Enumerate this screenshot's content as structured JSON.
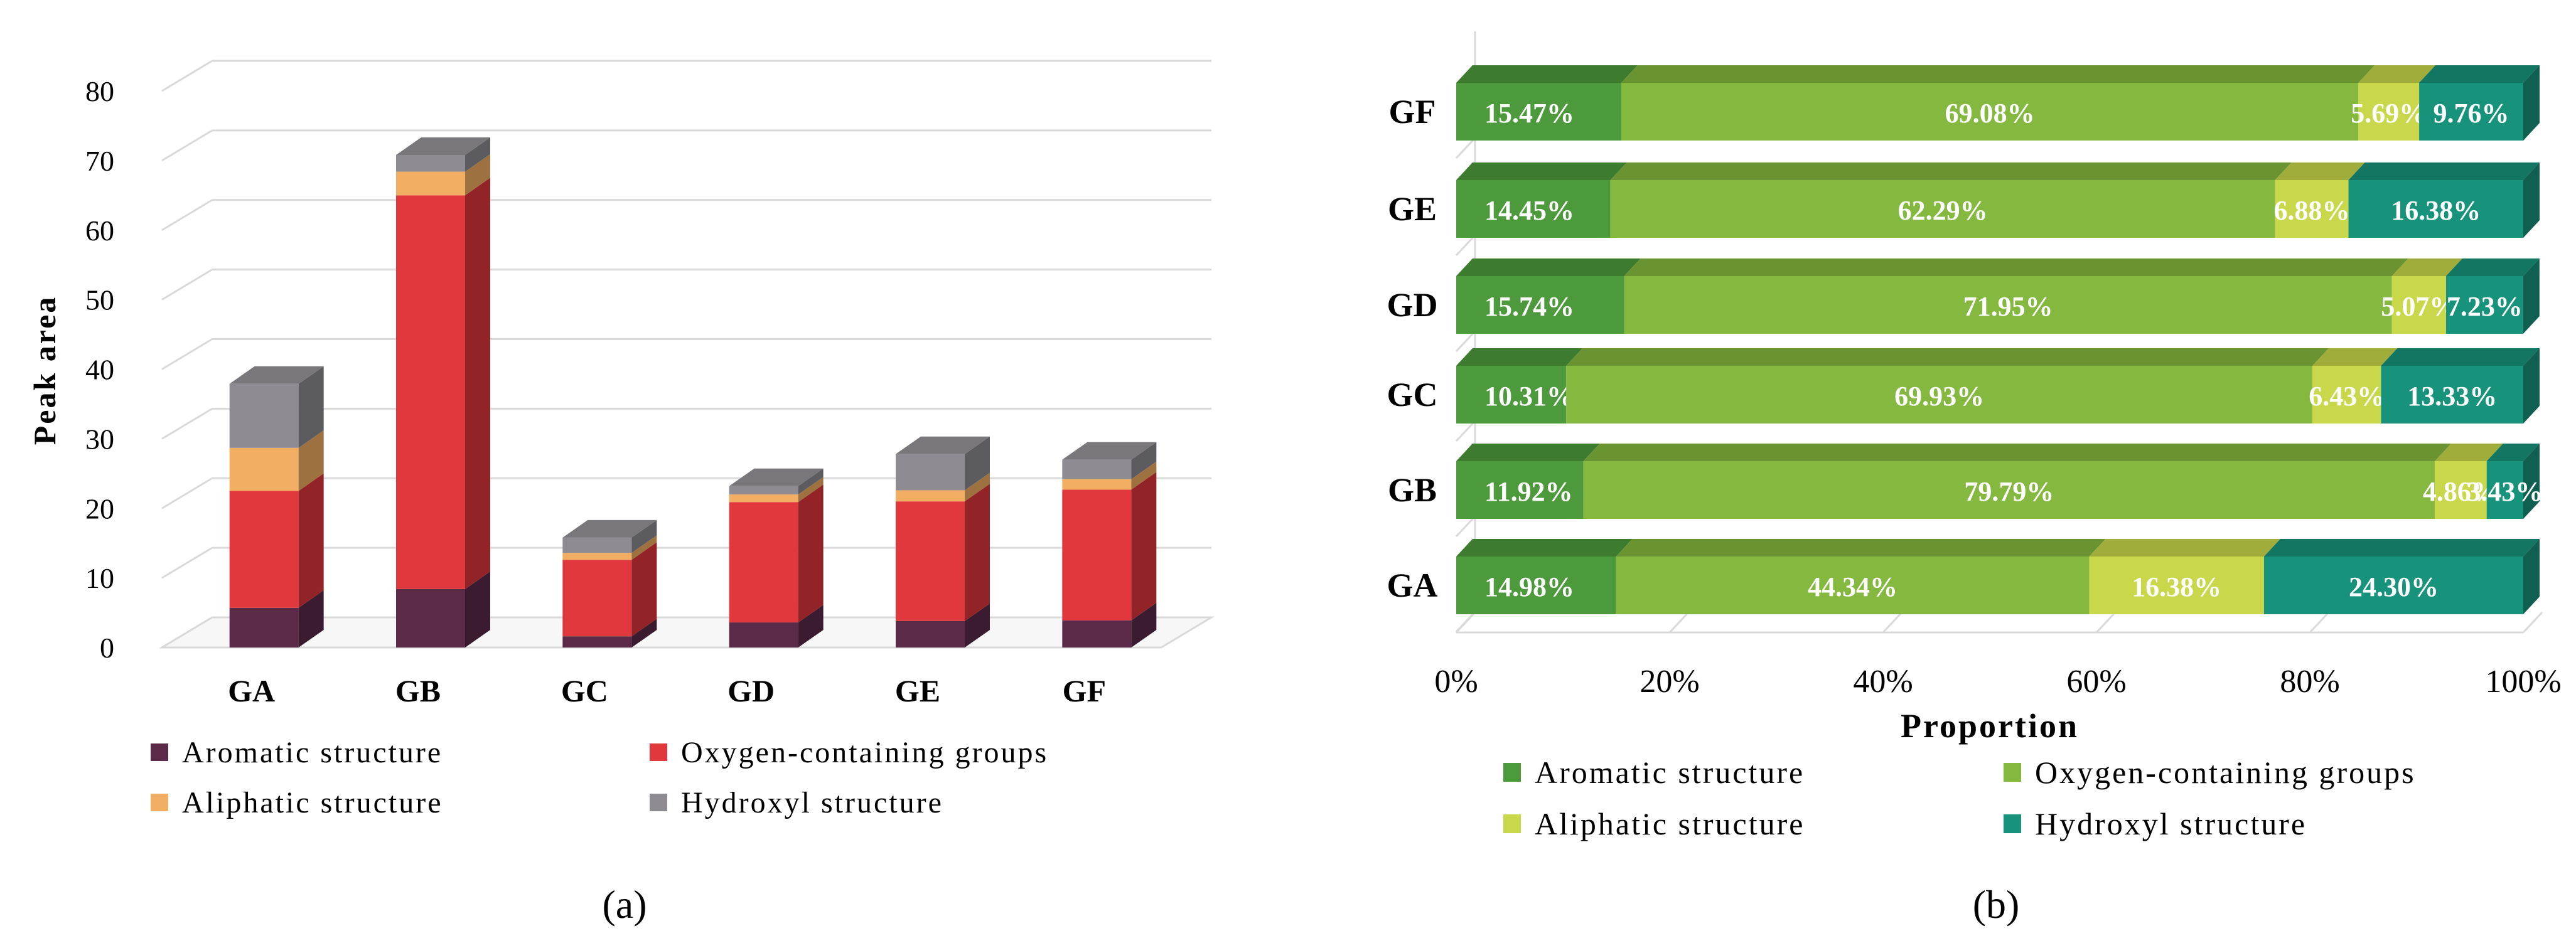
{
  "chart_data": [
    {
      "type": "bar",
      "stacked": true,
      "panel_label": "(a)",
      "title": "",
      "xlabel": "",
      "ylabel": "Peak area",
      "ylim": [
        0,
        80
      ],
      "yticks": [
        "0",
        "10",
        "20",
        "30",
        "40",
        "50",
        "60",
        "70",
        "80"
      ],
      "categories": [
        "GA",
        "GB",
        "GC",
        "GD",
        "GE",
        "GF"
      ],
      "series": [
        {
          "name": "Aromatic structure",
          "color": "#5a2a48",
          "values": [
            5.7,
            8.4,
            1.6,
            3.6,
            3.8,
            3.9
          ]
        },
        {
          "name": "Oxygen-containing groups",
          "color": "#e0383c",
          "values": [
            16.8,
            56.6,
            11.0,
            17.3,
            17.2,
            18.8
          ]
        },
        {
          "name": "Aliphatic structure",
          "color": "#f2ae62",
          "values": [
            6.2,
            3.4,
            1.0,
            1.1,
            1.6,
            1.5
          ]
        },
        {
          "name": "Hydroxyl structure",
          "color": "#8e8c92",
          "values": [
            9.2,
            2.4,
            2.2,
            1.2,
            5.2,
            2.8
          ]
        }
      ]
    },
    {
      "type": "bar",
      "stacked": true,
      "orientation": "horizontal",
      "panel_label": "(b)",
      "title": "",
      "xlabel": "Proportion",
      "ylabel": "",
      "xlim": [
        0,
        100
      ],
      "xticks": [
        "0%",
        "20%",
        "40%",
        "60%",
        "80%",
        "100%"
      ],
      "categories": [
        "GA",
        "GB",
        "GC",
        "GD",
        "GE",
        "GF"
      ],
      "series": [
        {
          "name": "Aromatic structure",
          "color": "#4c9a3b",
          "values": [
            14.98,
            11.92,
            10.31,
            15.74,
            14.45,
            15.47
          ],
          "labels": [
            "14.98%",
            "11.92%",
            "10.31%",
            "15.74%",
            "14.45%",
            "15.47%"
          ]
        },
        {
          "name": "Oxygen-containing groups",
          "color": "#84b83e",
          "values": [
            44.34,
            79.79,
            69.93,
            71.95,
            62.29,
            69.08
          ],
          "labels": [
            "44.34%",
            "79.79%",
            "69.93%",
            "71.95%",
            "62.29%",
            "69.08%"
          ]
        },
        {
          "name": "Aliphatic structure",
          "color": "#c8d84a",
          "values": [
            16.38,
            4.86,
            6.43,
            5.07,
            6.88,
            5.69
          ],
          "labels": [
            "16.38%",
            "4.86%",
            "6.43%",
            "5.07%",
            "6.88%",
            "5.69%"
          ]
        },
        {
          "name": "Hydroxyl structure",
          "color": "#17937c",
          "values": [
            24.3,
            3.43,
            13.33,
            7.23,
            16.38,
            9.76
          ],
          "labels": [
            "24.30%",
            "3.43%",
            "13.33%",
            "7.23%",
            "16.38%",
            "9.76%"
          ]
        }
      ]
    }
  ]
}
